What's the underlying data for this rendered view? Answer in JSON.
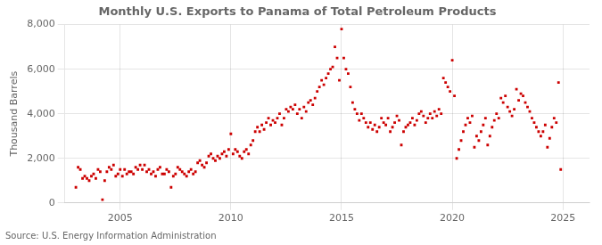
{
  "chart_data": {
    "type": "scatter",
    "title": "Monthly U.S. Exports to Panama of Total Petroleum Products",
    "ylabel": "Thousand Barrels",
    "source": "Source: U.S. Energy Information Administration",
    "color": "#CC0000",
    "marker": "square",
    "grid": true,
    "xlim": [
      2002.5,
      2026.2
    ],
    "xticks": [
      2005,
      2010,
      2015,
      2020,
      2025
    ],
    "ylim": [
      0,
      8000
    ],
    "yticks": [
      0,
      {
        "value": 2000,
        "label": "2,000"
      },
      {
        "value": 4000,
        "label": "4,000"
      },
      {
        "value": 6000,
        "label": "6,000"
      },
      {
        "value": 8000,
        "label": "8,000"
      }
    ],
    "x": [
      2003.0,
      2003.1,
      2003.2,
      2003.3,
      2003.4,
      2003.5,
      2003.6,
      2003.7,
      2003.8,
      2003.9,
      2004.0,
      2004.1,
      2004.2,
      2004.3,
      2004.4,
      2004.5,
      2004.6,
      2004.7,
      2004.8,
      2004.9,
      2005.0,
      2005.1,
      2005.2,
      2005.3,
      2005.4,
      2005.5,
      2005.6,
      2005.7,
      2005.8,
      2005.9,
      2006.0,
      2006.1,
      2006.2,
      2006.3,
      2006.4,
      2006.5,
      2006.6,
      2006.7,
      2006.8,
      2006.9,
      2007.0,
      2007.1,
      2007.2,
      2007.3,
      2007.4,
      2007.5,
      2007.6,
      2007.7,
      2007.8,
      2007.9,
      2008.0,
      2008.1,
      2008.2,
      2008.3,
      2008.4,
      2008.5,
      2008.6,
      2008.7,
      2008.8,
      2008.9,
      2009.0,
      2009.1,
      2009.2,
      2009.3,
      2009.4,
      2009.5,
      2009.6,
      2009.7,
      2009.8,
      2009.9,
      2010.0,
      2010.1,
      2010.2,
      2010.3,
      2010.4,
      2010.5,
      2010.6,
      2010.7,
      2010.8,
      2010.9,
      2011.0,
      2011.1,
      2011.2,
      2011.3,
      2011.4,
      2011.5,
      2011.6,
      2011.7,
      2011.8,
      2011.9,
      2012.0,
      2012.1,
      2012.2,
      2012.3,
      2012.4,
      2012.5,
      2012.6,
      2012.7,
      2012.8,
      2012.9,
      2013.0,
      2013.1,
      2013.2,
      2013.3,
      2013.4,
      2013.5,
      2013.6,
      2013.7,
      2013.8,
      2013.9,
      2014.0,
      2014.1,
      2014.2,
      2014.3,
      2014.4,
      2014.5,
      2014.6,
      2014.7,
      2014.8,
      2014.9,
      2015.0,
      2015.1,
      2015.2,
      2015.3,
      2015.4,
      2015.5,
      2015.6,
      2015.7,
      2015.8,
      2015.9,
      2016.0,
      2016.1,
      2016.2,
      2016.3,
      2016.4,
      2016.5,
      2016.6,
      2016.7,
      2016.8,
      2016.9,
      2017.0,
      2017.1,
      2017.2,
      2017.3,
      2017.4,
      2017.5,
      2017.6,
      2017.7,
      2017.8,
      2017.9,
      2018.0,
      2018.1,
      2018.2,
      2018.3,
      2018.4,
      2018.5,
      2018.6,
      2018.7,
      2018.8,
      2018.9,
      2019.0,
      2019.1,
      2019.2,
      2019.3,
      2019.4,
      2019.5,
      2019.6,
      2019.7,
      2019.8,
      2019.9,
      2020.0,
      2020.1,
      2020.2,
      2020.3,
      2020.4,
      2020.5,
      2020.6,
      2020.7,
      2020.8,
      2020.9,
      2021.0,
      2021.1,
      2021.2,
      2021.3,
      2021.4,
      2021.5,
      2021.6,
      2021.7,
      2021.8,
      2021.9,
      2022.0,
      2022.1,
      2022.2,
      2022.3,
      2022.4,
      2022.5,
      2022.6,
      2022.7,
      2022.8,
      2022.9,
      2023.0,
      2023.1,
      2023.2,
      2023.3,
      2023.4,
      2023.5,
      2023.6,
      2023.7,
      2023.8,
      2023.9,
      2024.0,
      2024.1,
      2024.2,
      2024.3,
      2024.4,
      2024.5,
      2024.6,
      2024.7,
      2024.8,
      2024.9
    ],
    "values": [
      700,
      1600,
      1500,
      1100,
      1200,
      1100,
      1000,
      1200,
      1300,
      1100,
      1500,
      1400,
      150,
      1000,
      1400,
      1600,
      1500,
      1700,
      1200,
      1300,
      1500,
      1200,
      1500,
      1300,
      1400,
      1400,
      1300,
      1600,
      1500,
      1700,
      1500,
      1700,
      1400,
      1500,
      1300,
      1400,
      1200,
      1500,
      1600,
      1300,
      1300,
      1500,
      1400,
      700,
      1200,
      1300,
      1600,
      1500,
      1400,
      1300,
      1200,
      1400,
      1500,
      1300,
      1400,
      1800,
      1900,
      1700,
      1600,
      1800,
      2100,
      2200,
      2000,
      1900,
      2100,
      2000,
      2200,
      2300,
      2100,
      2400,
      3100,
      2200,
      2400,
      2300,
      2100,
      2000,
      2300,
      2400,
      2200,
      2600,
      2800,
      3200,
      3400,
      3200,
      3500,
      3300,
      3600,
      3800,
      3500,
      3700,
      3600,
      3800,
      4000,
      3500,
      3800,
      4200,
      4100,
      4300,
      4200,
      4400,
      4000,
      4200,
      3800,
      4300,
      4100,
      4500,
      4600,
      4400,
      4700,
      5000,
      5200,
      5500,
      5300,
      5600,
      5800,
      6000,
      6100,
      7000,
      6500,
      5500,
      7800,
      6500,
      6000,
      5800,
      5200,
      4500,
      4200,
      4000,
      3700,
      4000,
      3800,
      3600,
      3400,
      3600,
      3300,
      3500,
      3200,
      3400,
      3800,
      3600,
      3500,
      3800,
      3200,
      3400,
      3600,
      3900,
      3700,
      2600,
      3200,
      3400,
      3500,
      3600,
      3800,
      3500,
      3700,
      4000,
      4100,
      3900,
      3600,
      3800,
      4000,
      3800,
      4100,
      3900,
      4200,
      4000,
      5600,
      5400,
      5200,
      5000,
      6400,
      4800,
      2000,
      2400,
      2800,
      3200,
      3500,
      3800,
      3600,
      3900,
      2500,
      3000,
      2800,
      3200,
      3500,
      3800,
      2600,
      3000,
      3400,
      3700,
      4000,
      3800,
      4700,
      4500,
      4800,
      4300,
      4100,
      3900,
      4200,
      5100,
      4600,
      4900,
      4800,
      4500,
      4300,
      4100,
      3800,
      3600,
      3400,
      3200,
      3000,
      3200,
      3500,
      2500,
      2900,
      3400,
      3800,
      3600,
      5400,
      1500
    ]
  }
}
